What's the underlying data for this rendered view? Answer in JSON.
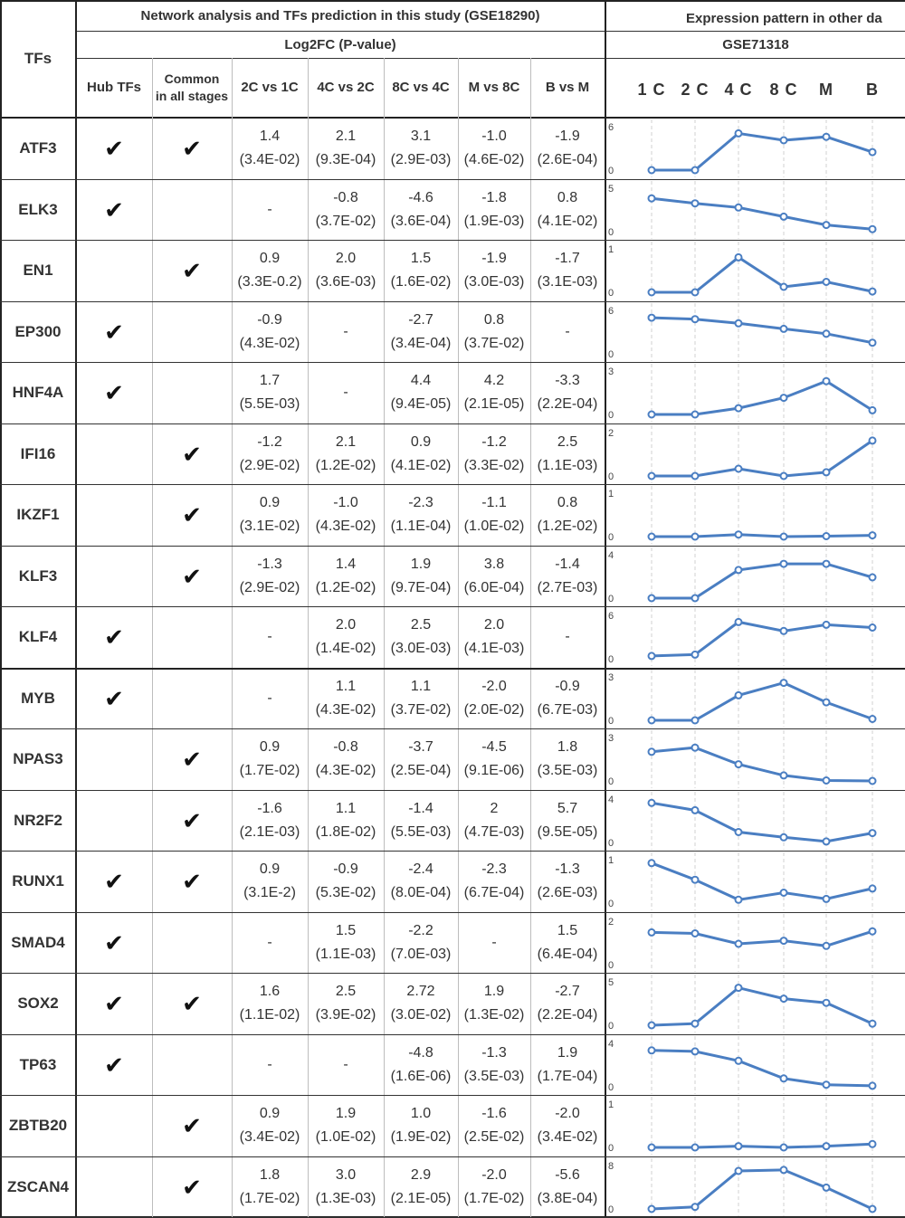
{
  "header": {
    "tfs_label": "TFs",
    "section1_title": "Network analysis and TFs prediction in this study (GSE18290)",
    "section2_title": "Expression pattern in other da",
    "log2fc_label": "Log2FC (P-value)",
    "dataset2_label": "GSE71318",
    "columns": [
      "Hub TFs",
      "Common\nin all stages",
      "2C vs 1C",
      "4C vs 2C",
      "8C vs 4C",
      "M vs 8C",
      "B vs M"
    ],
    "stages": [
      "1 C",
      "2 C",
      "4 C",
      "8 C",
      "M",
      "B"
    ]
  },
  "check_mark": "✔",
  "line_color": "#4a7ec2",
  "chart_data": {
    "type": "line",
    "x": [
      "1 C",
      "2 C",
      "4 C",
      "8 C",
      "M",
      "B"
    ],
    "series": [
      {
        "name": "ATF3",
        "ymax": 6,
        "values": [
          0.0,
          0.0,
          5.3,
          4.3,
          4.8,
          2.6
        ]
      },
      {
        "name": "ELK3",
        "ymax": 5,
        "values": [
          4.0,
          3.4,
          2.9,
          1.8,
          0.8,
          0.3
        ]
      },
      {
        "name": "EN1",
        "ymax": 1,
        "values": [
          0.0,
          0.0,
          0.84,
          0.13,
          0.25,
          0.02
        ]
      },
      {
        "name": "EP300",
        "ymax": 6,
        "values": [
          5.2,
          5.0,
          4.4,
          3.6,
          2.9,
          1.6
        ]
      },
      {
        "name": "HNF4A",
        "ymax": 3,
        "values": [
          0.0,
          0.0,
          0.45,
          1.2,
          2.4,
          0.3
        ]
      },
      {
        "name": "IFI16",
        "ymax": 2,
        "values": [
          0.0,
          0.0,
          0.35,
          0.0,
          0.18,
          1.7
        ]
      },
      {
        "name": "IKZF1",
        "ymax": 1,
        "values": [
          0.0,
          0.0,
          0.05,
          0.0,
          0.01,
          0.03
        ]
      },
      {
        "name": "KLF3",
        "ymax": 4,
        "values": [
          0.0,
          0.0,
          2.7,
          3.3,
          3.3,
          2.0
        ]
      },
      {
        "name": "KLF4",
        "ymax": 6,
        "values": [
          0.4,
          0.6,
          5.3,
          4.0,
          4.9,
          4.5
        ]
      },
      {
        "name": "MYB",
        "ymax": 3,
        "values": [
          0.0,
          0.0,
          1.8,
          2.7,
          1.3,
          0.1
        ]
      },
      {
        "name": "NPAS3",
        "ymax": 3,
        "values": [
          2.1,
          2.4,
          1.2,
          0.4,
          0.03,
          0.0
        ]
      },
      {
        "name": "NR2F2",
        "ymax": 4,
        "values": [
          3.8,
          3.1,
          1.0,
          0.5,
          0.1,
          0.9
        ]
      },
      {
        "name": "RUNX1",
        "ymax": 1,
        "values": [
          0.96,
          0.56,
          0.08,
          0.25,
          0.1,
          0.35
        ]
      },
      {
        "name": "SMAD4",
        "ymax": 2,
        "values": [
          1.55,
          1.5,
          1.0,
          1.15,
          0.9,
          1.6
        ]
      },
      {
        "name": "SOX2",
        "ymax": 5,
        "values": [
          0.0,
          0.2,
          4.5,
          3.2,
          2.7,
          0.2
        ]
      },
      {
        "name": "TP63",
        "ymax": 4,
        "values": [
          3.5,
          3.4,
          2.5,
          0.8,
          0.2,
          0.1
        ]
      },
      {
        "name": "ZBTB20",
        "ymax": 1,
        "values": [
          0.0,
          0.0,
          0.03,
          0.0,
          0.03,
          0.08
        ]
      },
      {
        "name": "ZSCAN4",
        "ymax": 8,
        "values": [
          0.0,
          0.4,
          7.3,
          7.5,
          4.1,
          0.0
        ]
      }
    ]
  },
  "rows": [
    {
      "tf": "ATF3",
      "hub": true,
      "common": true,
      "vals": [
        "1.4\n(3.4E-02)",
        "2.1\n(9.3E-04)",
        "3.1\n(2.9E-03)",
        "-1.0\n(4.6E-02)",
        "-1.9\n(2.6E-04)"
      ]
    },
    {
      "tf": "ELK3",
      "hub": true,
      "common": false,
      "vals": [
        "-",
        "-0.8\n(3.7E-02)",
        "-4.6\n(3.6E-04)",
        "-1.8\n(1.9E-03)",
        "0.8\n(4.1E-02)"
      ]
    },
    {
      "tf": "EN1",
      "hub": false,
      "common": true,
      "vals": [
        "0.9\n(3.3E-0.2)",
        "2.0\n(3.6E-03)",
        "1.5\n(1.6E-02)",
        "-1.9\n(3.0E-03)",
        "-1.7\n(3.1E-03)"
      ]
    },
    {
      "tf": "EP300",
      "hub": true,
      "common": false,
      "vals": [
        "-0.9\n(4.3E-02)",
        "-",
        "-2.7\n(3.4E-04)",
        "0.8\n(3.7E-02)",
        "-"
      ]
    },
    {
      "tf": "HNF4A",
      "hub": true,
      "common": false,
      "vals": [
        "1.7\n(5.5E-03)",
        "-",
        "4.4\n(9.4E-05)",
        "4.2\n(2.1E-05)",
        "-3.3\n(2.2E-04)"
      ]
    },
    {
      "tf": "IFI16",
      "hub": false,
      "common": true,
      "vals": [
        "-1.2\n(2.9E-02)",
        "2.1\n(1.2E-02)",
        "0.9\n(4.1E-02)",
        "-1.2\n(3.3E-02)",
        "2.5\n(1.1E-03)"
      ]
    },
    {
      "tf": "IKZF1",
      "hub": false,
      "common": true,
      "vals": [
        "0.9\n(3.1E-02)",
        "-1.0\n(4.3E-02)",
        "-2.3\n(1.1E-04)",
        "-1.1\n(1.0E-02)",
        "0.8\n(1.2E-02)"
      ]
    },
    {
      "tf": "KLF3",
      "hub": false,
      "common": true,
      "vals": [
        "-1.3\n(2.9E-02)",
        "1.4\n(1.2E-02)",
        "1.9\n(9.7E-04)",
        "3.8\n(6.0E-04)",
        "-1.4\n(2.7E-03)"
      ]
    },
    {
      "tf": "KLF4",
      "hub": true,
      "common": false,
      "vals": [
        "-",
        "2.0\n(1.4E-02)",
        "2.5\n(3.0E-03)",
        "2.0\n(4.1E-03)",
        "-"
      ]
    },
    {
      "tf": "MYB",
      "hub": true,
      "common": false,
      "vals": [
        "-",
        "1.1\n(4.3E-02)",
        "1.1\n(3.7E-02)",
        "-2.0\n(2.0E-02)",
        "-0.9\n(6.7E-03)"
      ]
    },
    {
      "tf": "NPAS3",
      "hub": false,
      "common": true,
      "vals": [
        "0.9\n(1.7E-02)",
        "-0.8\n(4.3E-02)",
        "-3.7\n(2.5E-04)",
        "-4.5\n(9.1E-06)",
        "1.8\n(3.5E-03)"
      ]
    },
    {
      "tf": "NR2F2",
      "hub": false,
      "common": true,
      "vals": [
        "-1.6\n(2.1E-03)",
        "1.1\n(1.8E-02)",
        "-1.4\n(5.5E-03)",
        "2\n(4.7E-03)",
        "5.7\n(9.5E-05)"
      ]
    },
    {
      "tf": "RUNX1",
      "hub": true,
      "common": true,
      "vals": [
        "0.9\n(3.1E-2)",
        "-0.9\n(5.3E-02)",
        "-2.4\n(8.0E-04)",
        "-2.3\n(6.7E-04)",
        "-1.3\n(2.6E-03)"
      ]
    },
    {
      "tf": "SMAD4",
      "hub": true,
      "common": false,
      "vals": [
        "-",
        "1.5\n(1.1E-03)",
        "-2.2\n(7.0E-03)",
        "-",
        "1.5\n(6.4E-04)"
      ]
    },
    {
      "tf": "SOX2",
      "hub": true,
      "common": true,
      "vals": [
        "1.6\n(1.1E-02)",
        "2.5\n(3.9E-02)",
        "2.72\n(3.0E-02)",
        "1.9\n(1.3E-02)",
        "-2.7\n(2.2E-04)"
      ]
    },
    {
      "tf": "TP63",
      "hub": true,
      "common": false,
      "vals": [
        "-",
        "-",
        "-4.8\n(1.6E-06)",
        "-1.3\n(3.5E-03)",
        "1.9\n(1.7E-04)"
      ]
    },
    {
      "tf": "ZBTB20",
      "hub": false,
      "common": true,
      "vals": [
        "0.9\n(3.4E-02)",
        "1.9\n(1.0E-02)",
        "1.0\n(1.9E-02)",
        "-1.6\n(2.5E-02)",
        "-2.0\n(3.4E-02)"
      ]
    },
    {
      "tf": "ZSCAN4",
      "hub": false,
      "common": true,
      "vals": [
        "1.8\n(1.7E-02)",
        "3.0\n(1.3E-03)",
        "2.9\n(2.1E-05)",
        "-2.0\n(1.7E-02)",
        "-5.6\n(3.8E-04)"
      ]
    }
  ]
}
